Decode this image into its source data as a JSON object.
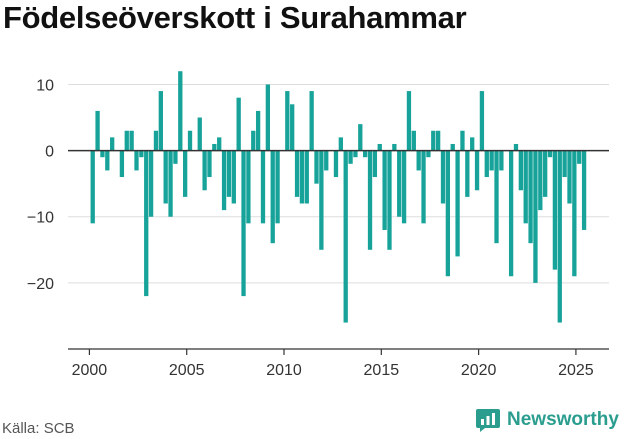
{
  "title": "Födelseöverskott i Surahammar",
  "source": "Källa: SCB",
  "brand": {
    "name": "Newsworthy",
    "icon": "newsworthy-chat-chart-icon"
  },
  "colors": {
    "bar": "#17a39a",
    "zero_line": "#333333",
    "grid": "#dddddd",
    "brand": "#2a9d8f"
  },
  "chart_data": {
    "type": "bar",
    "title": "Födelseöverskott i Surahammar",
    "xlabel": "",
    "ylabel": "",
    "xlim": [
      1998.9,
      2026.7
    ],
    "ylim": [
      -30,
      14
    ],
    "grid": "horizontal",
    "yticks": [
      {
        "value": 10,
        "label": "10"
      },
      {
        "value": 0,
        "label": "0"
      },
      {
        "value": -10,
        "label": "−10"
      },
      {
        "value": -20,
        "label": "−20"
      }
    ],
    "xticks": [
      {
        "value": 2000,
        "label": "2000"
      },
      {
        "value": 2005,
        "label": "2005"
      },
      {
        "value": 2010,
        "label": "2010"
      },
      {
        "value": 2015,
        "label": "2015"
      },
      {
        "value": 2020,
        "label": "2020"
      },
      {
        "value": 2025,
        "label": "2025"
      }
    ],
    "points": [
      {
        "x": 2000.17,
        "y": -11
      },
      {
        "x": 2000.42,
        "y": 6
      },
      {
        "x": 2000.67,
        "y": -1
      },
      {
        "x": 2000.92,
        "y": -3
      },
      {
        "x": 2001.17,
        "y": 2
      },
      {
        "x": 2001.42,
        "y": 0
      },
      {
        "x": 2001.67,
        "y": -4
      },
      {
        "x": 2001.92,
        "y": 3
      },
      {
        "x": 2002.17,
        "y": 3
      },
      {
        "x": 2002.42,
        "y": -3
      },
      {
        "x": 2002.67,
        "y": -1
      },
      {
        "x": 2002.92,
        "y": -22
      },
      {
        "x": 2003.17,
        "y": -10
      },
      {
        "x": 2003.42,
        "y": 3
      },
      {
        "x": 2003.67,
        "y": 9
      },
      {
        "x": 2003.92,
        "y": -8
      },
      {
        "x": 2004.17,
        "y": -10
      },
      {
        "x": 2004.42,
        "y": -2
      },
      {
        "x": 2004.67,
        "y": 12
      },
      {
        "x": 2004.92,
        "y": -7
      },
      {
        "x": 2005.17,
        "y": 3
      },
      {
        "x": 2005.42,
        "y": 0
      },
      {
        "x": 2005.67,
        "y": 5
      },
      {
        "x": 2005.92,
        "y": -6
      },
      {
        "x": 2006.17,
        "y": -4
      },
      {
        "x": 2006.42,
        "y": 1
      },
      {
        "x": 2006.67,
        "y": 2
      },
      {
        "x": 2006.92,
        "y": -9
      },
      {
        "x": 2007.17,
        "y": -7
      },
      {
        "x": 2007.42,
        "y": -8
      },
      {
        "x": 2007.67,
        "y": 8
      },
      {
        "x": 2007.92,
        "y": -22
      },
      {
        "x": 2008.17,
        "y": -11
      },
      {
        "x": 2008.42,
        "y": 3
      },
      {
        "x": 2008.67,
        "y": 6
      },
      {
        "x": 2008.92,
        "y": -11
      },
      {
        "x": 2009.17,
        "y": 10
      },
      {
        "x": 2009.42,
        "y": -14
      },
      {
        "x": 2009.67,
        "y": -11
      },
      {
        "x": 2009.92,
        "y": 0
      },
      {
        "x": 2010.17,
        "y": 9
      },
      {
        "x": 2010.42,
        "y": 7
      },
      {
        "x": 2010.67,
        "y": -7
      },
      {
        "x": 2010.92,
        "y": -8
      },
      {
        "x": 2011.17,
        "y": -8
      },
      {
        "x": 2011.42,
        "y": 9
      },
      {
        "x": 2011.67,
        "y": -5
      },
      {
        "x": 2011.92,
        "y": -15
      },
      {
        "x": 2012.17,
        "y": -3
      },
      {
        "x": 2012.42,
        "y": 0
      },
      {
        "x": 2012.67,
        "y": -4
      },
      {
        "x": 2012.92,
        "y": 2
      },
      {
        "x": 2013.17,
        "y": -26
      },
      {
        "x": 2013.42,
        "y": -2
      },
      {
        "x": 2013.67,
        "y": -1
      },
      {
        "x": 2013.92,
        "y": 4
      },
      {
        "x": 2014.17,
        "y": -1
      },
      {
        "x": 2014.42,
        "y": -15
      },
      {
        "x": 2014.67,
        "y": -4
      },
      {
        "x": 2014.92,
        "y": 1
      },
      {
        "x": 2015.17,
        "y": -12
      },
      {
        "x": 2015.42,
        "y": -15
      },
      {
        "x": 2015.67,
        "y": 1
      },
      {
        "x": 2015.92,
        "y": -10
      },
      {
        "x": 2016.17,
        "y": -11
      },
      {
        "x": 2016.42,
        "y": 9
      },
      {
        "x": 2016.67,
        "y": 3
      },
      {
        "x": 2016.92,
        "y": -3
      },
      {
        "x": 2017.17,
        "y": -11
      },
      {
        "x": 2017.42,
        "y": -1
      },
      {
        "x": 2017.67,
        "y": 3
      },
      {
        "x": 2017.92,
        "y": 3
      },
      {
        "x": 2018.17,
        "y": -8
      },
      {
        "x": 2018.42,
        "y": -19
      },
      {
        "x": 2018.67,
        "y": 1
      },
      {
        "x": 2018.92,
        "y": -16
      },
      {
        "x": 2019.17,
        "y": 3
      },
      {
        "x": 2019.42,
        "y": -7
      },
      {
        "x": 2019.67,
        "y": 2
      },
      {
        "x": 2019.92,
        "y": -6
      },
      {
        "x": 2020.17,
        "y": 9
      },
      {
        "x": 2020.42,
        "y": -4
      },
      {
        "x": 2020.67,
        "y": -3
      },
      {
        "x": 2020.92,
        "y": -14
      },
      {
        "x": 2021.17,
        "y": -3
      },
      {
        "x": 2021.42,
        "y": 0
      },
      {
        "x": 2021.67,
        "y": -19
      },
      {
        "x": 2021.92,
        "y": 1
      },
      {
        "x": 2022.17,
        "y": -6
      },
      {
        "x": 2022.42,
        "y": -11
      },
      {
        "x": 2022.67,
        "y": -14
      },
      {
        "x": 2022.92,
        "y": -20
      },
      {
        "x": 2023.17,
        "y": -9
      },
      {
        "x": 2023.42,
        "y": -7
      },
      {
        "x": 2023.67,
        "y": -1
      },
      {
        "x": 2023.92,
        "y": -18
      },
      {
        "x": 2024.17,
        "y": -26
      },
      {
        "x": 2024.42,
        "y": -4
      },
      {
        "x": 2024.67,
        "y": -8
      },
      {
        "x": 2024.92,
        "y": -19
      },
      {
        "x": 2025.17,
        "y": -2
      },
      {
        "x": 2025.42,
        "y": -12
      }
    ]
  }
}
